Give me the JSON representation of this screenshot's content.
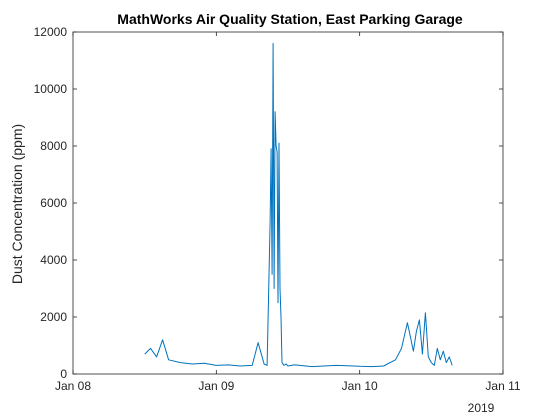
{
  "colors": {
    "line": "#0072BD",
    "axes": "#262626",
    "background": "#ffffff"
  },
  "chart_data": {
    "type": "line",
    "title": "MathWorks Air Quality Station, East Parking Garage",
    "xlabel": "",
    "ylabel": "Dust Concentration (ppm)",
    "x_tick_labels": [
      "Jan 08",
      "Jan 09",
      "Jan 10",
      "Jan 11"
    ],
    "x_year_label": "2019",
    "x_range": [
      "2019-01-08 00:00",
      "2019-01-11 00:00"
    ],
    "ylim": [
      0,
      12000
    ],
    "y_ticks": [
      0,
      2000,
      4000,
      6000,
      8000,
      10000,
      12000
    ],
    "grid": false,
    "box": true,
    "series": [
      {
        "x": [
          "2019-01-08 12:00",
          "2019-01-08 13:00",
          "2019-01-08 14:00",
          "2019-01-08 15:00",
          "2019-01-08 16:00",
          "2019-01-08 18:00",
          "2019-01-08 20:00",
          "2019-01-08 22:00",
          "2019-01-09 00:00",
          "2019-01-09 02:00",
          "2019-01-09 04:00",
          "2019-01-09 06:00",
          "2019-01-09 07:00",
          "2019-01-09 08:00",
          "2019-01-09 08:30",
          "2019-01-09 09:00",
          "2019-01-09 09:10",
          "2019-01-09 09:20",
          "2019-01-09 09:30",
          "2019-01-09 09:40",
          "2019-01-09 09:50",
          "2019-01-09 10:00",
          "2019-01-09 10:10",
          "2019-01-09 10:20",
          "2019-01-09 10:30",
          "2019-01-09 10:40",
          "2019-01-09 10:50",
          "2019-01-09 11:00",
          "2019-01-09 11:20",
          "2019-01-09 11:40",
          "2019-01-09 12:00",
          "2019-01-09 13:00",
          "2019-01-09 14:00",
          "2019-01-09 16:00",
          "2019-01-09 18:00",
          "2019-01-09 20:00",
          "2019-01-09 22:00",
          "2019-01-10 00:00",
          "2019-01-10 02:00",
          "2019-01-10 04:00",
          "2019-01-10 06:00",
          "2019-01-10 07:00",
          "2019-01-10 08:00",
          "2019-01-10 08:30",
          "2019-01-10 09:00",
          "2019-01-10 09:30",
          "2019-01-10 10:00",
          "2019-01-10 10:30",
          "2019-01-10 11:00",
          "2019-01-10 11:30",
          "2019-01-10 12:00",
          "2019-01-10 12:30",
          "2019-01-10 13:00",
          "2019-01-10 13:30",
          "2019-01-10 14:00",
          "2019-01-10 14:30",
          "2019-01-10 15:00",
          "2019-01-10 15:30"
        ],
        "values": [
          700,
          900,
          600,
          1200,
          500,
          400,
          350,
          380,
          300,
          320,
          280,
          300,
          1100,
          350,
          300,
          5300,
          7900,
          3500,
          11600,
          3000,
          9200,
          8000,
          7800,
          2500,
          8100,
          3000,
          2000,
          400,
          300,
          350,
          280,
          320,
          300,
          260,
          280,
          300,
          290,
          270,
          260,
          280,
          500,
          900,
          1800,
          1300,
          800,
          1500,
          1900,
          700,
          2150,
          600,
          400,
          300,
          900,
          500,
          800,
          400,
          600,
          300
        ]
      }
    ]
  }
}
